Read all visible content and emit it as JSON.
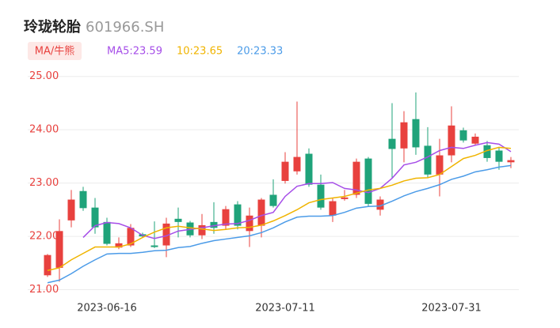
{
  "chart_data": {
    "type": "candlestick",
    "title": "玲珑轮胎",
    "subtitle": "601966.SH",
    "legend_title": "MA/牛熊",
    "categories": [
      null,
      null,
      null,
      null,
      null,
      "2023-06-16",
      null,
      null,
      null,
      null,
      null,
      null,
      null,
      null,
      null,
      null,
      null,
      null,
      null,
      null,
      "2023-07-11",
      null,
      null,
      null,
      null,
      null,
      null,
      null,
      null,
      null,
      null,
      null,
      null,
      null,
      "2023-07-31",
      null,
      null,
      null,
      null,
      null
    ],
    "open": [
      21.27,
      21.41,
      22.3,
      22.85,
      22.54,
      22.27,
      21.79,
      21.83,
      22.04,
      21.83,
      21.83,
      22.33,
      22.26,
      22.02,
      22.27,
      22.2,
      22.6,
      22.1,
      22.2,
      22.78,
      23.04,
      23.22,
      23.55,
      22.97,
      22.39,
      22.7,
      22.78,
      23.46,
      22.5,
      23.83,
      23.65,
      24.2,
      23.7,
      23.16,
      23.52,
      23.99,
      23.74,
      23.71,
      23.61,
      23.39
    ],
    "high": [
      21.67,
      22.32,
      22.87,
      22.93,
      22.72,
      22.35,
      21.98,
      22.23,
      22.07,
      22.28,
      22.35,
      22.54,
      22.29,
      22.42,
      22.64,
      22.57,
      22.66,
      22.54,
      22.72,
      23.07,
      23.58,
      24.53,
      23.65,
      23.16,
      22.72,
      22.87,
      23.46,
      23.49,
      22.75,
      24.5,
      24.35,
      24.7,
      24.05,
      23.83,
      24.44,
      24.04,
      23.93,
      23.79,
      23.67,
      23.49
    ],
    "low": [
      21.24,
      21.15,
      22.17,
      22.48,
      22.05,
      21.83,
      21.76,
      21.8,
      21.97,
      21.78,
      21.61,
      21.98,
      21.98,
      21.95,
      22.05,
      22.13,
      22.13,
      21.8,
      21.98,
      22.54,
      22.99,
      23.16,
      22.93,
      22.5,
      22.27,
      22.67,
      22.72,
      22.57,
      22.39,
      23.09,
      23.39,
      23.53,
      23.09,
      22.75,
      23.39,
      23.76,
      23.7,
      23.4,
      23.25,
      23.28
    ],
    "close": [
      21.65,
      22.1,
      22.69,
      22.53,
      22.17,
      21.86,
      21.87,
      22.16,
      22.0,
      21.8,
      22.24,
      22.27,
      22.02,
      22.21,
      22.16,
      22.51,
      22.2,
      22.39,
      22.69,
      22.57,
      23.4,
      23.49,
      22.97,
      22.54,
      22.66,
      22.73,
      23.4,
      22.61,
      22.69,
      23.64,
      24.14,
      23.67,
      23.16,
      23.52,
      24.08,
      23.8,
      23.87,
      23.47,
      23.4,
      23.43
    ],
    "up_color": "#e8413e",
    "down_color": "#1fa37a",
    "series": [
      {
        "name": "MA5:23.59",
        "color": "#a64ee8",
        "values": [
          null,
          null,
          null,
          21.98,
          22.2,
          22.26,
          22.24,
          22.16,
          22.02,
          21.96,
          22.01,
          22.1,
          22.13,
          22.16,
          22.2,
          22.23,
          22.24,
          22.3,
          22.39,
          22.45,
          22.75,
          22.94,
          22.99,
          22.99,
          23.01,
          22.9,
          22.87,
          22.82,
          22.9,
          23.09,
          23.34,
          23.39,
          23.49,
          23.61,
          23.67,
          23.65,
          23.71,
          23.76,
          23.73,
          23.59
        ]
      },
      {
        "name": "10:23.65",
        "color": "#f0b400",
        "values": [
          21.36,
          21.41,
          21.56,
          21.68,
          21.8,
          21.8,
          21.8,
          21.86,
          21.98,
          22.08,
          22.16,
          22.19,
          22.16,
          22.14,
          22.11,
          22.13,
          22.16,
          22.17,
          22.21,
          22.29,
          22.39,
          22.5,
          22.63,
          22.69,
          22.72,
          22.75,
          22.81,
          22.87,
          22.9,
          22.96,
          23.04,
          23.09,
          23.1,
          23.16,
          23.31,
          23.46,
          23.52,
          23.61,
          23.67,
          23.65
        ]
      },
      {
        "name": "20:23.33",
        "color": "#4b9be8",
        "values": [
          21.13,
          21.18,
          21.3,
          21.44,
          21.56,
          21.67,
          21.68,
          21.68,
          21.7,
          21.73,
          21.74,
          21.79,
          21.81,
          21.87,
          21.92,
          21.95,
          21.98,
          22.01,
          22.07,
          22.16,
          22.27,
          22.36,
          22.38,
          22.38,
          22.39,
          22.45,
          22.53,
          22.56,
          22.57,
          22.66,
          22.76,
          22.84,
          22.9,
          22.97,
          23.07,
          23.13,
          23.21,
          23.25,
          23.3,
          23.33
        ]
      }
    ],
    "ylim": [
      20.8,
      25.1
    ],
    "yticks": [
      {
        "value": 21,
        "label": "21.00"
      },
      {
        "value": 22,
        "label": "22.00"
      },
      {
        "value": 23,
        "label": "23.00"
      },
      {
        "value": 24,
        "label": "24.00"
      },
      {
        "value": 25,
        "label": "25.00"
      }
    ],
    "grid": true
  }
}
